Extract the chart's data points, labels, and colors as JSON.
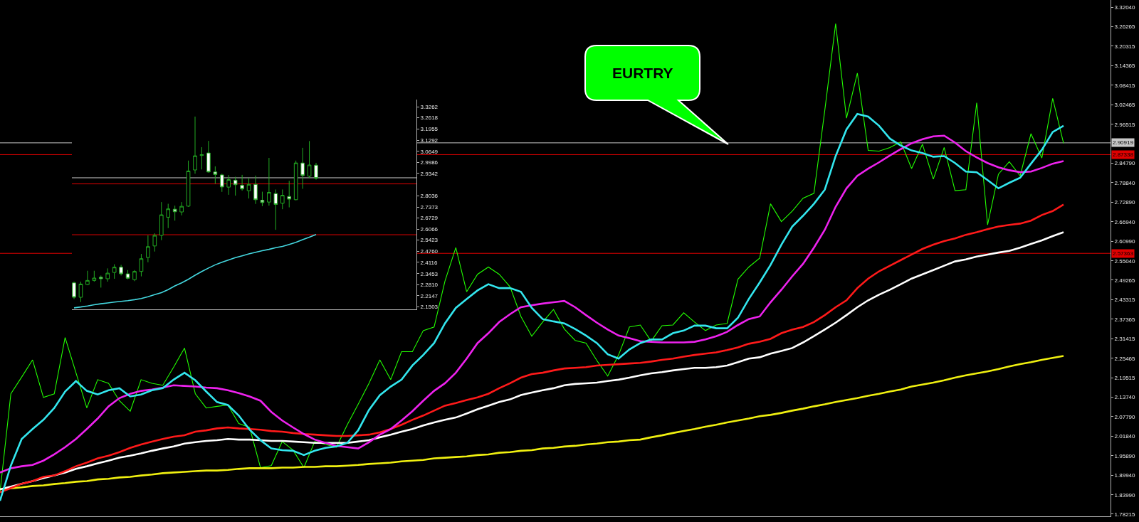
{
  "chart_data": [
    {
      "type": "line",
      "categories": [
        null,
        null,
        null,
        null,
        null,
        null,
        null,
        null,
        null,
        null,
        null,
        null,
        null,
        null,
        null,
        null,
        null,
        null,
        null,
        null,
        null,
        null,
        null,
        null,
        null,
        null,
        null,
        null,
        null,
        null,
        null,
        null,
        null,
        null,
        null,
        null,
        null,
        null,
        null,
        null,
        null,
        null,
        null,
        null,
        null,
        null,
        null,
        null,
        null,
        null,
        null,
        null,
        null,
        null,
        null,
        null,
        null,
        null,
        null,
        null,
        null,
        null,
        null,
        null,
        null,
        null,
        null,
        null,
        null,
        null,
        null,
        null,
        null,
        null,
        null,
        null,
        null,
        null,
        null,
        null,
        null,
        null,
        null,
        null,
        null,
        null,
        null,
        null,
        null,
        null,
        null,
        null,
        null,
        null,
        null,
        null,
        null,
        null,
        null
      ],
      "series": [
        {
          "color": "#22ff00",
          "values": [
            1.848,
            2.147,
            2.198,
            2.25,
            2.136,
            2.147,
            2.318,
            2.211,
            2.104,
            2.19,
            2.179,
            2.126,
            2.094,
            2.19,
            2.179,
            2.173,
            2.228,
            2.286,
            2.147,
            2.104,
            2.109,
            2.113,
            2.057,
            2.045,
            1.923,
            1.929,
            2.002,
            1.976,
            1.923,
            2.002,
            1.993,
            1.985,
            2.053,
            2.115,
            2.179,
            2.25,
            2.19,
            2.275,
            2.275,
            2.339,
            2.35,
            2.489,
            2.591,
            2.457,
            2.51,
            2.532,
            2.51,
            2.472,
            2.382,
            2.322,
            2.365,
            2.403,
            2.344,
            2.309,
            2.301,
            2.248,
            2.201,
            2.265,
            2.35,
            2.356,
            2.307,
            2.354,
            2.356,
            2.393,
            2.365,
            2.339,
            2.356,
            2.361,
            2.495,
            2.532,
            2.559,
            2.724,
            2.67,
            2.702,
            2.741,
            2.756,
            3.008,
            3.271,
            2.984,
            3.121,
            2.886,
            2.884,
            2.895,
            2.912,
            2.831,
            2.905,
            2.799,
            2.895,
            2.764,
            2.767,
            3.031,
            2.66,
            2.814,
            2.852,
            2.809,
            2.937,
            2.863,
            3.044,
            2.908
          ]
        },
        {
          "color": "#f0f010",
          "values": [
            1.857,
            1.86,
            1.863,
            1.867,
            1.869,
            1.873,
            1.876,
            1.88,
            1.882,
            1.887,
            1.889,
            1.893,
            1.895,
            1.899,
            1.902,
            1.906,
            1.908,
            1.91,
            1.912,
            1.914,
            1.914,
            1.916,
            1.919,
            1.921,
            1.921,
            1.921,
            1.923,
            1.923,
            1.925,
            1.925,
            1.927,
            1.927,
            1.929,
            1.931,
            1.934,
            1.936,
            1.938,
            1.942,
            1.944,
            1.946,
            1.951,
            1.953,
            1.955,
            1.957,
            1.961,
            1.963,
            1.968,
            1.97,
            1.974,
            1.976,
            1.981,
            1.983,
            1.987,
            1.989,
            1.993,
            1.996,
            2.0,
            2.002,
            2.006,
            2.008,
            2.015,
            2.021,
            2.028,
            2.034,
            2.04,
            2.047,
            2.053,
            2.06,
            2.066,
            2.072,
            2.079,
            2.083,
            2.089,
            2.096,
            2.102,
            2.109,
            2.115,
            2.122,
            2.128,
            2.134,
            2.141,
            2.147,
            2.154,
            2.16,
            2.169,
            2.175,
            2.181,
            2.188,
            2.196,
            2.203,
            2.209,
            2.215,
            2.222,
            2.23,
            2.237,
            2.243,
            2.25,
            2.256,
            2.262
          ]
        },
        {
          "color": "#ffffff",
          "values": [
            1.857,
            1.865,
            1.874,
            1.882,
            1.891,
            1.899,
            1.908,
            1.919,
            1.927,
            1.936,
            1.944,
            1.953,
            1.959,
            1.966,
            1.974,
            1.981,
            1.987,
            1.996,
            2.0,
            2.004,
            2.006,
            2.01,
            2.008,
            2.008,
            2.006,
            2.004,
            2.004,
            2.002,
            2.0,
            1.998,
            1.998,
            1.998,
            1.998,
            2.002,
            2.006,
            2.015,
            2.023,
            2.032,
            2.04,
            2.051,
            2.06,
            2.068,
            2.075,
            2.087,
            2.1,
            2.111,
            2.122,
            2.13,
            2.143,
            2.151,
            2.158,
            2.164,
            2.173,
            2.177,
            2.179,
            2.181,
            2.186,
            2.19,
            2.196,
            2.203,
            2.209,
            2.213,
            2.218,
            2.222,
            2.226,
            2.226,
            2.228,
            2.233,
            2.243,
            2.254,
            2.258,
            2.269,
            2.277,
            2.286,
            2.303,
            2.322,
            2.342,
            2.363,
            2.386,
            2.41,
            2.431,
            2.448,
            2.463,
            2.48,
            2.497,
            2.51,
            2.523,
            2.536,
            2.549,
            2.555,
            2.564,
            2.57,
            2.576,
            2.581,
            2.591,
            2.602,
            2.613,
            2.626,
            2.638
          ]
        },
        {
          "color": "#ff1a1a",
          "values": [
            1.848,
            1.861,
            1.874,
            1.882,
            1.895,
            1.899,
            1.912,
            1.927,
            1.938,
            1.951,
            1.959,
            1.97,
            1.983,
            1.993,
            2.002,
            2.01,
            2.017,
            2.021,
            2.032,
            2.036,
            2.042,
            2.045,
            2.042,
            2.04,
            2.038,
            2.034,
            2.032,
            2.028,
            2.025,
            2.023,
            2.021,
            2.019,
            2.019,
            2.021,
            2.023,
            2.03,
            2.04,
            2.053,
            2.068,
            2.081,
            2.096,
            2.111,
            2.119,
            2.128,
            2.136,
            2.147,
            2.164,
            2.179,
            2.196,
            2.207,
            2.211,
            2.218,
            2.224,
            2.226,
            2.228,
            2.233,
            2.235,
            2.237,
            2.239,
            2.241,
            2.245,
            2.25,
            2.254,
            2.26,
            2.265,
            2.269,
            2.273,
            2.28,
            2.288,
            2.299,
            2.305,
            2.314,
            2.331,
            2.342,
            2.35,
            2.365,
            2.386,
            2.41,
            2.431,
            2.468,
            2.497,
            2.519,
            2.536,
            2.553,
            2.57,
            2.587,
            2.6,
            2.611,
            2.619,
            2.63,
            2.638,
            2.647,
            2.655,
            2.66,
            2.664,
            2.673,
            2.69,
            2.702,
            2.722
          ]
        },
        {
          "color": "#ee22ee",
          "values": [
            1.908,
            1.921,
            1.927,
            1.931,
            1.944,
            1.963,
            1.985,
            2.01,
            2.04,
            2.072,
            2.109,
            2.134,
            2.147,
            2.156,
            2.16,
            2.166,
            2.173,
            2.171,
            2.169,
            2.166,
            2.164,
            2.158,
            2.149,
            2.139,
            2.126,
            2.092,
            2.066,
            2.045,
            2.025,
            2.008,
            1.998,
            1.989,
            1.985,
            1.981,
            2.0,
            2.023,
            2.04,
            2.066,
            2.094,
            2.126,
            2.156,
            2.179,
            2.211,
            2.254,
            2.301,
            2.331,
            2.365,
            2.389,
            2.41,
            2.416,
            2.421,
            2.425,
            2.429,
            2.41,
            2.386,
            2.363,
            2.342,
            2.324,
            2.316,
            2.307,
            2.305,
            2.303,
            2.303,
            2.303,
            2.305,
            2.312,
            2.322,
            2.335,
            2.356,
            2.374,
            2.382,
            2.425,
            2.463,
            2.504,
            2.542,
            2.591,
            2.645,
            2.715,
            2.771,
            2.809,
            2.831,
            2.85,
            2.871,
            2.89,
            2.908,
            2.92,
            2.929,
            2.931,
            2.91,
            2.884,
            2.865,
            2.848,
            2.835,
            2.826,
            2.82,
            2.822,
            2.833,
            2.846,
            2.854
          ]
        },
        {
          "color": "#33e6ee",
          "values": [
            1.822,
            1.929,
            2.01,
            2.04,
            2.068,
            2.104,
            2.154,
            2.186,
            2.156,
            2.145,
            2.158,
            2.164,
            2.139,
            2.145,
            2.158,
            2.164,
            2.19,
            2.211,
            2.188,
            2.154,
            2.122,
            2.113,
            2.081,
            2.038,
            2.006,
            1.981,
            1.976,
            1.974,
            1.961,
            1.974,
            1.983,
            1.987,
            1.998,
            2.036,
            2.098,
            2.143,
            2.169,
            2.19,
            2.233,
            2.265,
            2.301,
            2.361,
            2.408,
            2.435,
            2.461,
            2.48,
            2.468,
            2.468,
            2.457,
            2.408,
            2.374,
            2.367,
            2.361,
            2.344,
            2.324,
            2.301,
            2.267,
            2.254,
            2.282,
            2.301,
            2.312,
            2.312,
            2.331,
            2.339,
            2.354,
            2.354,
            2.346,
            2.346,
            2.378,
            2.435,
            2.485,
            2.538,
            2.6,
            2.655,
            2.688,
            2.724,
            2.767,
            2.869,
            2.95,
            2.997,
            2.989,
            2.961,
            2.922,
            2.901,
            2.886,
            2.878,
            2.867,
            2.869,
            2.848,
            2.822,
            2.82,
            2.796,
            2.771,
            2.788,
            2.803,
            2.846,
            2.888,
            2.942,
            2.961
          ]
        }
      ],
      "ylim": [
        1.775,
        3.343
      ],
      "yticks": [
        {
          "value": 3.3204,
          "label": "3.32040"
        },
        3.26265,
        3.20315,
        3.14365,
        3.08415,
        3.02465,
        2.96515,
        {
          "value": 2.8479,
          "label": "2.84790"
        },
        {
          "value": 2.7884,
          "label": "2.78840"
        },
        {
          "value": 2.7289,
          "label": "2.72890"
        },
        {
          "value": 2.6694,
          "label": "2.66940"
        },
        {
          "value": 2.6099,
          "label": "2.60990"
        },
        {
          "value": 2.5504,
          "label": "2.55040"
        },
        2.49265,
        2.43315,
        2.37365,
        2.31415,
        2.25465,
        2.19515,
        {
          "value": 2.1374,
          "label": "2.13740"
        },
        {
          "value": 2.0779,
          "label": "2.07790"
        },
        {
          "value": 2.0184,
          "label": "2.01840"
        },
        {
          "value": 1.9589,
          "label": "1.95890"
        },
        {
          "value": 1.8994,
          "label": "1.89940"
        },
        {
          "value": 1.8399,
          "label": "1.83990"
        },
        1.78215
      ],
      "tick_labels": "y",
      "ref_lines": [
        {
          "axis": "y",
          "value": 2.90919,
          "label": "2.90919",
          "color": "#c8c8c8"
        },
        {
          "axis": "y",
          "value": 2.87338,
          "label": "2.87338",
          "color": "#e00000"
        },
        {
          "axis": "y",
          "value": 2.57363,
          "label": "2.57363",
          "color": "#e00000"
        }
      ],
      "annotations": [
        "EURTRY"
      ]
    },
    {
      "type": "candlestick",
      "categories": [
        null,
        null,
        null,
        null,
        null,
        null,
        null,
        null,
        null,
        null,
        null,
        null,
        null,
        null,
        null,
        null,
        null,
        null,
        null,
        null,
        null,
        null,
        null,
        null,
        null,
        null,
        null,
        null,
        null,
        null,
        null,
        null,
        null,
        null,
        null,
        null,
        null
      ],
      "ohlc": [
        [
          2.291,
          2.298,
          2.196,
          2.206
        ],
        [
          2.206,
          2.298,
          2.178,
          2.284
        ],
        [
          2.281,
          2.362,
          2.277,
          2.305
        ],
        [
          2.305,
          2.362,
          2.298,
          2.319
        ],
        [
          2.324,
          2.334,
          2.263,
          2.315
        ],
        [
          2.315,
          2.376,
          2.298,
          2.348
        ],
        [
          2.352,
          2.4,
          2.315,
          2.383
        ],
        [
          2.383,
          2.397,
          2.334,
          2.344
        ],
        [
          2.344,
          2.366,
          2.312,
          2.318
        ],
        [
          2.31,
          2.366,
          2.301,
          2.358
        ],
        [
          2.358,
          2.461,
          2.329,
          2.433
        ],
        [
          2.44,
          2.57,
          2.412,
          2.504
        ],
        [
          2.508,
          2.582,
          2.475,
          2.57
        ],
        [
          2.57,
          2.766,
          2.542,
          2.691
        ],
        [
          2.677,
          2.756,
          2.613,
          2.726
        ],
        [
          2.724,
          2.745,
          2.657,
          2.709
        ],
        [
          2.708,
          2.766,
          2.688,
          2.741
        ],
        [
          2.742,
          3.01,
          2.738,
          2.949
        ],
        [
          2.955,
          3.269,
          2.933,
          3.038
        ],
        [
          3.04,
          3.089,
          2.958,
          3.045
        ],
        [
          3.055,
          3.126,
          2.939,
          2.943
        ],
        [
          2.943,
          2.976,
          2.874,
          2.928
        ],
        [
          2.926,
          2.933,
          2.826,
          2.855
        ],
        [
          2.854,
          2.925,
          2.809,
          2.898
        ],
        [
          2.895,
          2.915,
          2.804,
          2.868
        ],
        [
          2.865,
          2.926,
          2.833,
          2.843
        ],
        [
          2.833,
          2.908,
          2.787,
          2.87
        ],
        [
          2.87,
          2.922,
          2.755,
          2.78
        ],
        [
          2.777,
          2.827,
          2.742,
          2.763
        ],
        [
          2.766,
          3.026,
          2.745,
          2.823
        ],
        [
          2.816,
          2.84,
          2.603,
          2.752
        ],
        [
          2.759,
          2.84,
          2.724,
          2.806
        ],
        [
          2.799,
          2.891,
          2.735,
          2.783
        ],
        [
          2.78,
          3.01,
          2.777,
          2.996
        ],
        [
          2.996,
          3.085,
          2.844,
          2.922
        ],
        [
          2.918,
          3.125,
          2.908,
          2.984
        ],
        [
          2.983,
          2.997,
          2.898,
          2.906
        ]
      ],
      "series": [
        {
          "type": "line",
          "color": "#44d8e0",
          "values": [
            2.144,
            2.149,
            2.155,
            2.162,
            2.168,
            2.173,
            2.178,
            2.182,
            2.186,
            2.192,
            2.199,
            2.209,
            2.222,
            2.233,
            2.251,
            2.273,
            2.291,
            2.312,
            2.336,
            2.358,
            2.378,
            2.397,
            2.412,
            2.426,
            2.439,
            2.45,
            2.461,
            2.471,
            2.48,
            2.488,
            2.498,
            2.505,
            2.517,
            2.529,
            2.545,
            2.56,
            2.575
          ]
        }
      ],
      "ylim": [
        2.135,
        3.369
      ],
      "yticks": [
        3.3262,
        3.2618,
        3.1955,
        3.1292,
        3.0649,
        2.9986,
        2.9342,
        2.8036,
        2.7373,
        2.6729,
        2.6066,
        2.5423,
        {
          "value": 2.476,
          "label": "2.4760"
        },
        2.4116,
        2.3453,
        {
          "value": 2.281,
          "label": "2.2810"
        },
        2.2147,
        2.1503
      ],
      "tick_labels": "y",
      "ref_lines": [
        {
          "axis": "y",
          "value": 2.909,
          "color": "#c8c8c8"
        },
        {
          "axis": "y",
          "value": 2.873,
          "color": "#e00000"
        },
        {
          "axis": "y",
          "value": 2.574,
          "color": "#e00000"
        }
      ]
    }
  ]
}
